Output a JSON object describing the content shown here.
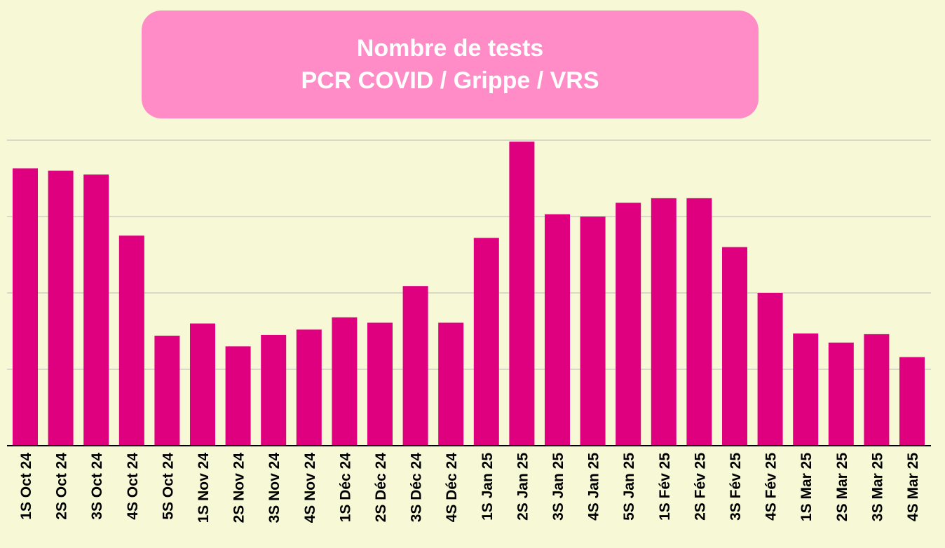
{
  "chart_data": {
    "type": "bar",
    "title": "Nombre de tests",
    "subtitle": "PCR COVID / Grippe / VRS",
    "categories": [
      "1S Oct 24",
      "2S Oct 24",
      "3S Oct 24",
      "4S Oct 24",
      "5S Oct 24",
      "1S Nov 24",
      "2S Nov 24",
      "3S Nov 24",
      "4S Nov 24",
      "1S Déc 24",
      "2S Déc 24",
      "3S Déc 24",
      "4S Déc 24",
      "1S Jan 25",
      "2S Jan 25",
      "3S Jan 25",
      "4S Jan 25",
      "5S Jan 25",
      "1S Fév 25",
      "2S Fév 25",
      "3S Fév 25",
      "4S Fév 25",
      "1S Mar 25",
      "2S Mar 25",
      "3S Mar 25",
      "4S Mar 25"
    ],
    "values": [
      3.63,
      3.6,
      3.55,
      2.75,
      1.44,
      1.6,
      1.3,
      1.45,
      1.52,
      1.68,
      1.61,
      2.09,
      1.61,
      2.72,
      3.98,
      3.03,
      3.0,
      3.18,
      3.24,
      3.24,
      2.6,
      2.0,
      1.47,
      1.35,
      1.46,
      1.16
    ],
    "ylim": [
      0,
      4
    ],
    "grid": true,
    "bar_color": "#df007f",
    "title_box_color": "#ff8cc6",
    "background_color": "#f7f9d6"
  }
}
